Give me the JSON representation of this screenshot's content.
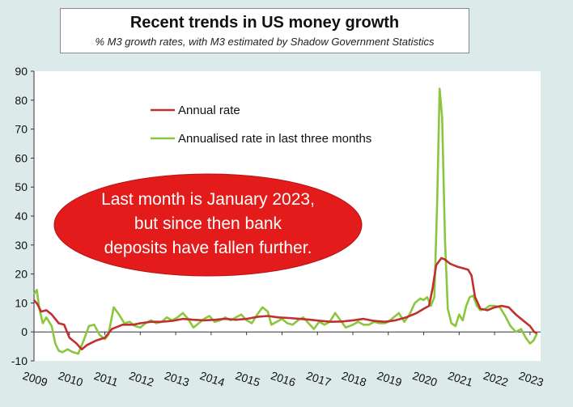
{
  "chart_data": {
    "type": "line",
    "title": "Recent trends in US money growth",
    "subtitle": "% M3 growth rates, with M3 estimated by Shadow Government Statistics",
    "xlabel": "",
    "ylabel": "",
    "ylim": [
      -10,
      90
    ],
    "yticks": [
      "90",
      "80",
      "70",
      "60",
      "50",
      "40",
      "30",
      "20",
      "10",
      "0",
      "-10"
    ],
    "xticks": [
      "2009",
      "2010",
      "2011",
      "2012",
      "2013",
      "2014",
      "2015",
      "2016",
      "2017",
      "2018",
      "2019",
      "2020",
      "2021",
      "2022",
      "2023"
    ],
    "legend_position": "top-left",
    "annotation": [
      "Last month is January 2023,",
      "but since then bank",
      "deposits have fallen further."
    ],
    "series": [
      {
        "name": "Annual rate",
        "color": "#c0302e",
        "points": [
          [
            2009.0,
            11
          ],
          [
            2009.1,
            9.5
          ],
          [
            2009.2,
            7
          ],
          [
            2009.35,
            7.5
          ],
          [
            2009.5,
            6
          ],
          [
            2009.7,
            3
          ],
          [
            2009.85,
            2.5
          ],
          [
            2010.0,
            -2
          ],
          [
            2010.2,
            -4
          ],
          [
            2010.35,
            -6
          ],
          [
            2010.5,
            -4.5
          ],
          [
            2010.75,
            -3
          ],
          [
            2011.0,
            -2
          ],
          [
            2011.2,
            1
          ],
          [
            2011.5,
            2.5
          ],
          [
            2011.8,
            2.5
          ],
          [
            2012.0,
            3
          ],
          [
            2012.3,
            3.5
          ],
          [
            2012.6,
            3.5
          ],
          [
            2012.9,
            3.8
          ],
          [
            2013.2,
            4.5
          ],
          [
            2013.5,
            4.2
          ],
          [
            2013.8,
            4.0
          ],
          [
            2014.1,
            4.2
          ],
          [
            2014.4,
            4.5
          ],
          [
            2014.7,
            4.2
          ],
          [
            2015.0,
            4.5
          ],
          [
            2015.3,
            5.2
          ],
          [
            2015.6,
            5.5
          ],
          [
            2015.9,
            5.0
          ],
          [
            2016.2,
            4.8
          ],
          [
            2016.5,
            4.5
          ],
          [
            2016.8,
            4.2
          ],
          [
            2017.1,
            3.8
          ],
          [
            2017.4,
            3.5
          ],
          [
            2017.7,
            3.6
          ],
          [
            2018.0,
            4.0
          ],
          [
            2018.3,
            4.5
          ],
          [
            2018.6,
            3.8
          ],
          [
            2018.9,
            3.5
          ],
          [
            2019.2,
            4.0
          ],
          [
            2019.5,
            5.0
          ],
          [
            2019.8,
            6.5
          ],
          [
            2020.0,
            8.0
          ],
          [
            2020.15,
            9.0
          ],
          [
            2020.25,
            15
          ],
          [
            2020.35,
            23
          ],
          [
            2020.5,
            25.5
          ],
          [
            2020.6,
            25
          ],
          [
            2020.75,
            23.5
          ],
          [
            2020.95,
            22.5
          ],
          [
            2021.1,
            22
          ],
          [
            2021.25,
            21.5
          ],
          [
            2021.35,
            19.5
          ],
          [
            2021.45,
            12
          ],
          [
            2021.6,
            8
          ],
          [
            2021.8,
            7.5
          ],
          [
            2022.0,
            8.5
          ],
          [
            2022.2,
            9
          ],
          [
            2022.4,
            8.5
          ],
          [
            2022.6,
            6
          ],
          [
            2022.8,
            4
          ],
          [
            2023.0,
            2
          ],
          [
            2023.12,
            0
          ],
          [
            2023.2,
            -0.5
          ]
        ]
      },
      {
        "name": "Annualised rate in last three months",
        "color": "#8cc63e",
        "points": [
          [
            2009.0,
            13
          ],
          [
            2009.08,
            14.5
          ],
          [
            2009.15,
            8
          ],
          [
            2009.25,
            3
          ],
          [
            2009.35,
            5
          ],
          [
            2009.5,
            2
          ],
          [
            2009.6,
            -4
          ],
          [
            2009.7,
            -6.5
          ],
          [
            2009.8,
            -7
          ],
          [
            2009.95,
            -6
          ],
          [
            2010.1,
            -7
          ],
          [
            2010.25,
            -7.5
          ],
          [
            2010.4,
            -3
          ],
          [
            2010.55,
            2
          ],
          [
            2010.7,
            2.5
          ],
          [
            2010.85,
            -1
          ],
          [
            2011.0,
            -2.5
          ],
          [
            2011.1,
            -1
          ],
          [
            2011.25,
            8.5
          ],
          [
            2011.4,
            6
          ],
          [
            2011.55,
            3
          ],
          [
            2011.7,
            3.5
          ],
          [
            2011.85,
            2
          ],
          [
            2012.0,
            1.5
          ],
          [
            2012.15,
            3
          ],
          [
            2012.3,
            4
          ],
          [
            2012.45,
            3
          ],
          [
            2012.6,
            3.5
          ],
          [
            2012.75,
            5
          ],
          [
            2012.9,
            4
          ],
          [
            2013.05,
            5
          ],
          [
            2013.2,
            6.5
          ],
          [
            2013.35,
            4.5
          ],
          [
            2013.5,
            1.5
          ],
          [
            2013.65,
            3
          ],
          [
            2013.8,
            4.5
          ],
          [
            2013.95,
            5.5
          ],
          [
            2014.1,
            3.5
          ],
          [
            2014.25,
            4
          ],
          [
            2014.4,
            5
          ],
          [
            2014.55,
            4
          ],
          [
            2014.7,
            5
          ],
          [
            2014.85,
            6
          ],
          [
            2015.0,
            4
          ],
          [
            2015.15,
            3
          ],
          [
            2015.3,
            6
          ],
          [
            2015.45,
            8.5
          ],
          [
            2015.6,
            7
          ],
          [
            2015.7,
            2.5
          ],
          [
            2015.85,
            3.5
          ],
          [
            2016.0,
            4.5
          ],
          [
            2016.15,
            3
          ],
          [
            2016.3,
            2.5
          ],
          [
            2016.45,
            4
          ],
          [
            2016.6,
            5
          ],
          [
            2016.75,
            3
          ],
          [
            2016.9,
            1
          ],
          [
            2017.05,
            3.5
          ],
          [
            2017.2,
            2.5
          ],
          [
            2017.35,
            3.5
          ],
          [
            2017.5,
            6.5
          ],
          [
            2017.65,
            4
          ],
          [
            2017.8,
            1.5
          ],
          [
            2018.0,
            2.5
          ],
          [
            2018.15,
            3.5
          ],
          [
            2018.3,
            2.5
          ],
          [
            2018.45,
            2.5
          ],
          [
            2018.6,
            3.5
          ],
          [
            2018.75,
            3
          ],
          [
            2018.9,
            3
          ],
          [
            2019.0,
            3.5
          ],
          [
            2019.15,
            5
          ],
          [
            2019.3,
            6.5
          ],
          [
            2019.45,
            3.5
          ],
          [
            2019.6,
            6
          ],
          [
            2019.75,
            10
          ],
          [
            2019.9,
            11.5
          ],
          [
            2020.0,
            11
          ],
          [
            2020.1,
            12
          ],
          [
            2020.2,
            9
          ],
          [
            2020.3,
            12
          ],
          [
            2020.38,
            45
          ],
          [
            2020.45,
            84
          ],
          [
            2020.52,
            74
          ],
          [
            2020.6,
            32
          ],
          [
            2020.68,
            8
          ],
          [
            2020.78,
            3
          ],
          [
            2020.9,
            2
          ],
          [
            2021.0,
            6
          ],
          [
            2021.1,
            4
          ],
          [
            2021.2,
            9
          ],
          [
            2021.3,
            12
          ],
          [
            2021.4,
            12.5
          ],
          [
            2021.5,
            9
          ],
          [
            2021.6,
            7.5
          ],
          [
            2021.75,
            8
          ],
          [
            2021.85,
            9
          ],
          [
            2022.0,
            9
          ],
          [
            2022.15,
            8.5
          ],
          [
            2022.3,
            5.5
          ],
          [
            2022.45,
            2
          ],
          [
            2022.6,
            0
          ],
          [
            2022.75,
            1
          ],
          [
            2022.88,
            -2
          ],
          [
            2023.0,
            -4
          ],
          [
            2023.1,
            -3
          ],
          [
            2023.2,
            -0.5
          ]
        ]
      }
    ]
  }
}
